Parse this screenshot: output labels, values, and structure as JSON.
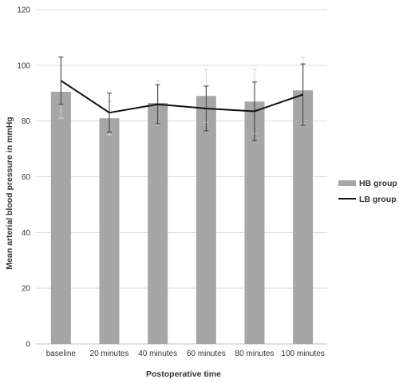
{
  "chart_data": {
    "type": "bar",
    "title": "",
    "xlabel": "Postoperative time",
    "ylabel": "Mean arterial blood pressure in mmHg",
    "ylim": [
      0,
      120
    ],
    "yticks": [
      0,
      20,
      40,
      60,
      80,
      100,
      120
    ],
    "grid": true,
    "legend_position": "right",
    "categories": [
      "baseline",
      "20 minutes",
      "40 minutes",
      "60 minutes",
      "80 minutes",
      "100 minutes"
    ],
    "series": [
      {
        "name": "HB group",
        "type": "bar",
        "color": "#a6a6a6",
        "values": [
          90.5,
          81,
          86.5,
          89,
          87,
          91
        ],
        "error": [
          9.5,
          6,
          8,
          9.5,
          11.5,
          12
        ],
        "error_color": "#d4d4d4"
      },
      {
        "name": "LB group",
        "type": "line",
        "color": "#111111",
        "values": [
          94.5,
          83,
          86,
          84.5,
          83.5,
          89.5
        ],
        "error": [
          8.5,
          7,
          7,
          8,
          10.5,
          11
        ],
        "error_color": "#333333"
      }
    ]
  }
}
